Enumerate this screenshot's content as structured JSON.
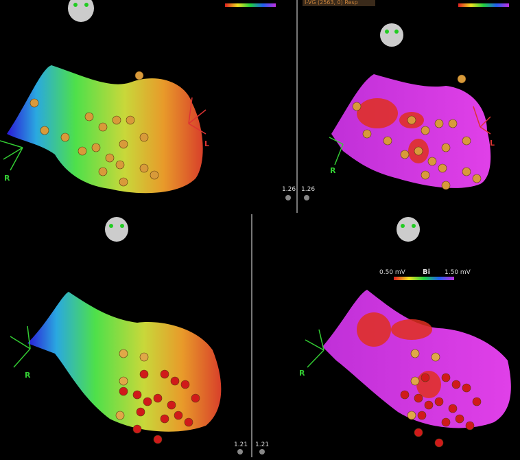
{
  "panels": [
    {
      "orientation_labels": [
        "R",
        "L"
      ],
      "zoom": "1.26"
    },
    {
      "header": "I-VG (2563, 0) Resp",
      "orientation_labels": [
        "R",
        "L"
      ],
      "zoom": "1.26"
    },
    {
      "orientation_labels": [
        "R"
      ],
      "zoom": "1.21"
    },
    {
      "orientation_labels": [
        "R"
      ],
      "zoom": "1.21",
      "scale": {
        "min": "0.50 mV",
        "label": "Bi",
        "max": "1.50 mV"
      }
    }
  ]
}
